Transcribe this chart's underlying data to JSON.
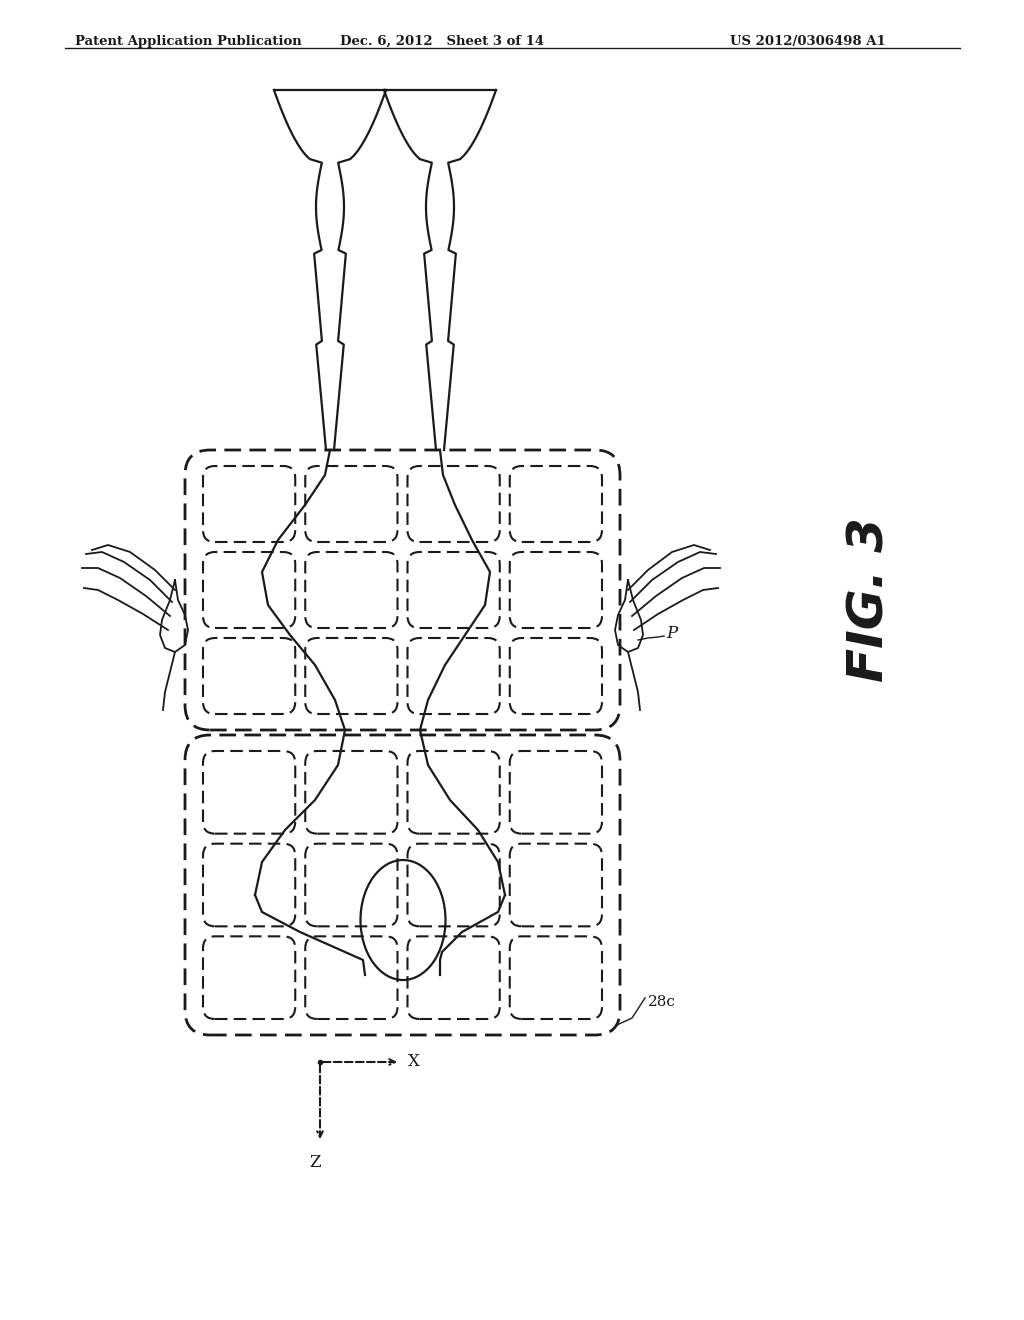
{
  "header_left": "Patent Application Publication",
  "header_mid": "Dec. 6, 2012   Sheet 3 of 14",
  "header_right": "US 2012/0306498 A1",
  "fig_label": "FIG. 3",
  "label_p": "P",
  "label_28c": "28c",
  "label_x": "X",
  "label_z": "Z",
  "bg_color": "#ffffff",
  "line_color": "#1a1a1a"
}
